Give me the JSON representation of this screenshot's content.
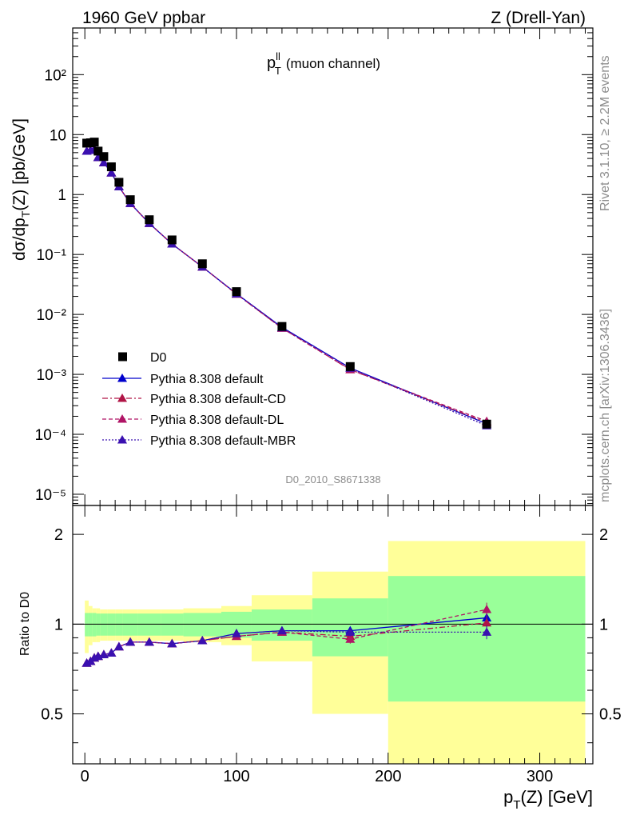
{
  "header": {
    "left": "1960 GeV ppbar",
    "right": "Z (Drell-Yan)"
  },
  "plot_label": {
    "main": "p",
    "sup": "ll",
    "sub": "T",
    "rest": "(muon channel)"
  },
  "analysis_id": "D0_2010_S8671338",
  "side_labels": {
    "rivet": "Rivet 3.1.10, ≥ 2.2M events",
    "mcplots": "mcplots.cern.ch [arXiv:1306.3436]"
  },
  "main_axis": {
    "ylabel_pre": "dσ/dp",
    "ylabel_sub": "T",
    "ylabel_post": "(Z) [pb/GeV]",
    "ytick_labels": [
      "10⁻⁵",
      "10⁻⁴",
      "10⁻³",
      "10⁻²",
      "10⁻¹",
      "1",
      "10",
      "10²"
    ]
  },
  "ratio_axis": {
    "ylabel": "Ratio to D0",
    "ytick_labels": [
      "0.5",
      "1",
      "2"
    ]
  },
  "x_axis": {
    "label_pre": "p",
    "label_sub": "T",
    "label_post": "(Z) [GeV]",
    "tick_labels": [
      "0",
      "100",
      "200",
      "300"
    ]
  },
  "colors": {
    "data": "#000000",
    "default": "#0000cc",
    "cd": "#b01446",
    "dl": "#b01466",
    "mbr": "#3a10b0",
    "band_inner": "#99ff99",
    "band_outer": "#ffff99",
    "side_text": "#8c8c8c"
  },
  "chart_data": {
    "type": "scatter",
    "x": [
      1.25,
      3.75,
      6.25,
      8.75,
      12.5,
      17.5,
      22.5,
      30,
      42.5,
      57.5,
      77.5,
      100,
      130,
      175,
      265
    ],
    "x_edges": [
      0,
      2.5,
      5,
      7.5,
      10,
      15,
      20,
      25,
      35,
      50,
      65,
      90,
      110,
      150,
      200,
      330
    ],
    "xlim": [
      -8,
      335
    ],
    "ylim_main": [
      6.5e-06,
      600
    ],
    "ylim_ratio": [
      0.34,
      2.5
    ],
    "yscale": "log",
    "legend_position": "lower-left",
    "data": {
      "name": "D0",
      "marker": "square",
      "y": [
        7.2,
        7.3,
        7.5,
        5.3,
        4.3,
        2.9,
        1.6,
        0.82,
        0.38,
        0.175,
        0.07,
        0.024,
        0.0063,
        0.00135,
        0.000148
      ],
      "ratio_band_inner": [
        0.09,
        0.09,
        0.09,
        0.085,
        0.085,
        0.085,
        0.085,
        0.085,
        0.085,
        0.085,
        0.09,
        0.1,
        0.12,
        0.22,
        0.45
      ],
      "ratio_band_outer": [
        0.2,
        0.15,
        0.13,
        0.13,
        0.12,
        0.12,
        0.12,
        0.12,
        0.12,
        0.12,
        0.13,
        0.15,
        0.25,
        0.5,
        0.9
      ]
    },
    "series": [
      {
        "name": "Pythia 8.308 default",
        "style": "solid",
        "y": [
          5.3,
          5.45,
          5.75,
          4.15,
          3.4,
          2.3,
          1.35,
          0.71,
          0.33,
          0.15,
          0.062,
          0.0222,
          0.0061,
          0.00128,
          0.00015
        ],
        "ratio": [
          0.74,
          0.75,
          0.77,
          0.78,
          0.79,
          0.8,
          0.84,
          0.87,
          0.87,
          0.86,
          0.88,
          0.93,
          0.95,
          0.95,
          1.05
        ],
        "ratio_err": [
          0.005,
          0.005,
          0.005,
          0.005,
          0.005,
          0.005,
          0.006,
          0.006,
          0.007,
          0.008,
          0.01,
          0.012,
          0.016,
          0.03,
          0.05
        ]
      },
      {
        "name": "Pythia 8.308 default-CD",
        "style": "dashdot",
        "y": [
          5.3,
          5.45,
          5.75,
          4.15,
          3.4,
          2.3,
          1.35,
          0.71,
          0.33,
          0.15,
          0.062,
          0.0218,
          0.0059,
          0.0012,
          0.000157
        ],
        "ratio": [
          0.74,
          0.75,
          0.77,
          0.78,
          0.79,
          0.8,
          0.84,
          0.87,
          0.87,
          0.86,
          0.88,
          0.91,
          0.94,
          0.91,
          1.01
        ],
        "ratio_err": [
          0.005,
          0.005,
          0.005,
          0.005,
          0.005,
          0.005,
          0.006,
          0.006,
          0.007,
          0.008,
          0.01,
          0.012,
          0.016,
          0.03,
          0.05
        ]
      },
      {
        "name": "Pythia 8.308 default-DL",
        "style": "dashed",
        "y": [
          5.3,
          5.45,
          5.75,
          4.15,
          3.4,
          2.3,
          1.35,
          0.71,
          0.33,
          0.15,
          0.062,
          0.0219,
          0.0059,
          0.0012,
          0.000165
        ],
        "ratio": [
          0.74,
          0.75,
          0.77,
          0.78,
          0.79,
          0.8,
          0.84,
          0.87,
          0.87,
          0.86,
          0.88,
          0.91,
          0.94,
          0.89,
          1.12
        ],
        "ratio_err": [
          0.005,
          0.005,
          0.005,
          0.005,
          0.005,
          0.005,
          0.006,
          0.006,
          0.007,
          0.008,
          0.01,
          0.012,
          0.016,
          0.03,
          0.06
        ]
      },
      {
        "name": "Pythia 8.308 default-MBR",
        "style": "dotted",
        "y": [
          5.3,
          5.45,
          5.75,
          4.15,
          3.4,
          2.3,
          1.35,
          0.71,
          0.33,
          0.15,
          0.062,
          0.022,
          0.006,
          0.00127,
          0.000139
        ],
        "ratio": [
          0.74,
          0.75,
          0.77,
          0.78,
          0.79,
          0.8,
          0.84,
          0.87,
          0.87,
          0.86,
          0.88,
          0.93,
          0.95,
          0.94,
          0.94
        ],
        "ratio_err": [
          0.005,
          0.005,
          0.005,
          0.005,
          0.005,
          0.005,
          0.006,
          0.006,
          0.007,
          0.008,
          0.01,
          0.012,
          0.016,
          0.03,
          0.05
        ]
      }
    ]
  }
}
